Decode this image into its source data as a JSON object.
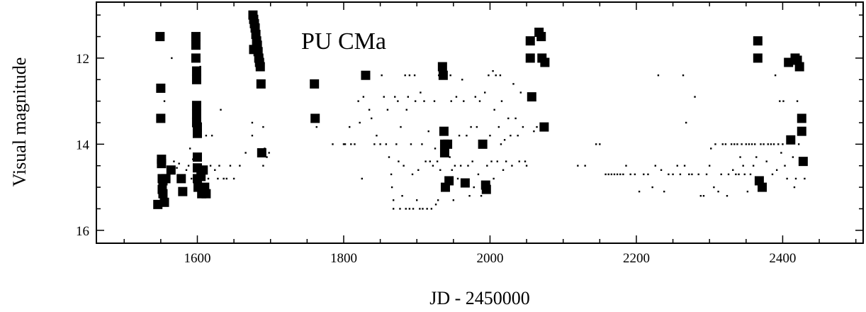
{
  "chart_data": {
    "type": "scatter",
    "title": "PU CMa",
    "xlabel": "JD - 2450000",
    "ylabel": "Visual   magnitude",
    "xlim": [
      1462,
      2510
    ],
    "ylim": [
      16.3,
      10.7
    ],
    "y_inverted": true,
    "x_ticks": [
      1600,
      1800,
      2000,
      2200,
      2400
    ],
    "y_ticks": [
      12,
      14,
      16
    ],
    "grid": false,
    "series": [
      {
        "marker": "large-square",
        "points": [
          [
            1549,
            11.5
          ],
          [
            1550,
            12.7
          ],
          [
            1550,
            13.4
          ],
          [
            1551,
            14.35
          ],
          [
            1551,
            14.45
          ],
          [
            1552,
            14.8
          ],
          [
            1552,
            15.05
          ],
          [
            1553,
            14.85
          ],
          [
            1553,
            15.15
          ],
          [
            1546,
            15.4
          ],
          [
            1555,
            15.35
          ],
          [
            1557,
            14.8
          ],
          [
            1564,
            14.6
          ],
          [
            1578,
            14.8
          ],
          [
            1580,
            15.1
          ],
          [
            1598,
            11.5
          ],
          [
            1598,
            11.7
          ],
          [
            1598,
            12.0
          ],
          [
            1599,
            12.3
          ],
          [
            1599,
            12.5
          ],
          [
            1599,
            13.1
          ],
          [
            1599,
            13.3
          ],
          [
            1599,
            13.5
          ],
          [
            1600,
            13.6
          ],
          [
            1600,
            13.75
          ],
          [
            1600,
            14.3
          ],
          [
            1600,
            14.55
          ],
          [
            1600,
            14.8
          ],
          [
            1601,
            15.0
          ],
          [
            1605,
            14.75
          ],
          [
            1606,
            15.15
          ],
          [
            1608,
            14.6
          ],
          [
            1610,
            15.0
          ],
          [
            1612,
            15.15
          ],
          [
            1676,
            11.0
          ],
          [
            1677,
            11.1
          ],
          [
            1678,
            11.2
          ],
          [
            1679,
            11.3
          ],
          [
            1680,
            11.45
          ],
          [
            1681,
            11.6
          ],
          [
            1682,
            11.7
          ],
          [
            1683,
            11.85
          ],
          [
            1684,
            12.0
          ],
          [
            1685,
            12.1
          ],
          [
            1686,
            12.2
          ],
          [
            1687,
            12.6
          ],
          [
            1677,
            11.8
          ],
          [
            1688,
            14.2
          ],
          [
            1760,
            12.6
          ],
          [
            1761,
            13.4
          ],
          [
            1830,
            12.4
          ],
          [
            1935,
            12.2
          ],
          [
            1936,
            12.4
          ],
          [
            1937,
            13.7
          ],
          [
            1938,
            14.0
          ],
          [
            1938,
            14.2
          ],
          [
            1939,
            15.0
          ],
          [
            1942,
            14.0
          ],
          [
            1944,
            14.85
          ],
          [
            1966,
            14.9
          ],
          [
            1990,
            14.0
          ],
          [
            1994,
            14.95
          ],
          [
            1995,
            15.05
          ],
          [
            2055,
            11.6
          ],
          [
            2055,
            12.0
          ],
          [
            2057,
            12.9
          ],
          [
            2067,
            11.4
          ],
          [
            2070,
            11.5
          ],
          [
            2071,
            12.0
          ],
          [
            2075,
            12.1
          ],
          [
            2074,
            13.6
          ],
          [
            2366,
            11.6
          ],
          [
            2366,
            12.0
          ],
          [
            2368,
            14.85
          ],
          [
            2372,
            15.0
          ],
          [
            2408,
            12.1
          ],
          [
            2411,
            13.9
          ],
          [
            2417,
            12.0
          ],
          [
            2420,
            12.05
          ],
          [
            2423,
            12.2
          ],
          [
            2426,
            13.4
          ],
          [
            2426,
            13.7
          ],
          [
            2428,
            14.4
          ]
        ]
      },
      {
        "marker": "small-dot",
        "points": [
          [
            1555,
            13.0
          ],
          [
            1556,
            14.4
          ],
          [
            1560,
            14.6
          ],
          [
            1565,
            12.0
          ],
          [
            1568,
            14.4
          ],
          [
            1572,
            14.55
          ],
          [
            1575,
            14.45
          ],
          [
            1585,
            14.6
          ],
          [
            1588,
            14.5
          ],
          [
            1590,
            14.1
          ],
          [
            1592,
            14.8
          ],
          [
            1594,
            14.35
          ],
          [
            1596,
            14.6
          ],
          [
            1603,
            15.0
          ],
          [
            1604,
            12.2
          ],
          [
            1612,
            13.8
          ],
          [
            1615,
            14.8
          ],
          [
            1618,
            14.5
          ],
          [
            1620,
            13.8
          ],
          [
            1624,
            14.6
          ],
          [
            1628,
            14.8
          ],
          [
            1630,
            14.5
          ],
          [
            1632,
            13.2
          ],
          [
            1636,
            14.8
          ],
          [
            1640,
            14.8
          ],
          [
            1645,
            14.5
          ],
          [
            1650,
            14.8
          ],
          [
            1658,
            14.5
          ],
          [
            1666,
            14.2
          ],
          [
            1675,
            13.5
          ],
          [
            1675,
            13.8
          ],
          [
            1690,
            13.6
          ],
          [
            1690,
            14.5
          ],
          [
            1692,
            14.1
          ],
          [
            1695,
            14.3
          ],
          [
            1698,
            14.2
          ],
          [
            1763,
            13.6
          ],
          [
            1785,
            14.0
          ],
          [
            1800,
            14.0
          ],
          [
            1802,
            14.0
          ],
          [
            1808,
            13.6
          ],
          [
            1810,
            14.0
          ],
          [
            1815,
            14.0
          ],
          [
            1820,
            13.0
          ],
          [
            1822,
            13.5
          ],
          [
            1825,
            14.8
          ],
          [
            1827,
            12.9
          ],
          [
            1835,
            13.2
          ],
          [
            1838,
            13.4
          ],
          [
            1842,
            14.0
          ],
          [
            1845,
            13.8
          ],
          [
            1850,
            14.0
          ],
          [
            1852,
            12.4
          ],
          [
            1855,
            12.9
          ],
          [
            1858,
            14.0
          ],
          [
            1860,
            13.2
          ],
          [
            1862,
            14.3
          ],
          [
            1865,
            14.7
          ],
          [
            1866,
            15.0
          ],
          [
            1868,
            15.3
          ],
          [
            1868,
            15.5
          ],
          [
            1870,
            12.9
          ],
          [
            1872,
            14.0
          ],
          [
            1874,
            13.0
          ],
          [
            1875,
            14.4
          ],
          [
            1877,
            15.5
          ],
          [
            1878,
            13.6
          ],
          [
            1880,
            15.2
          ],
          [
            1882,
            14.5
          ],
          [
            1884,
            12.4
          ],
          [
            1885,
            15.5
          ],
          [
            1886,
            13.2
          ],
          [
            1888,
            12.9
          ],
          [
            1890,
            12.4
          ],
          [
            1890,
            15.5
          ],
          [
            1892,
            14.0
          ],
          [
            1894,
            14.7
          ],
          [
            1895,
            15.5
          ],
          [
            1897,
            12.4
          ],
          [
            1898,
            13.0
          ],
          [
            1900,
            15.3
          ],
          [
            1902,
            14.6
          ],
          [
            1904,
            15.5
          ],
          [
            1905,
            12.8
          ],
          [
            1907,
            14.0
          ],
          [
            1908,
            15.5
          ],
          [
            1910,
            13.0
          ],
          [
            1912,
            14.4
          ],
          [
            1914,
            15.5
          ],
          [
            1916,
            13.7
          ],
          [
            1918,
            14.4
          ],
          [
            1920,
            15.5
          ],
          [
            1922,
            14.5
          ],
          [
            1924,
            13.0
          ],
          [
            1925,
            14.1
          ],
          [
            1926,
            15.4
          ],
          [
            1928,
            14.4
          ],
          [
            1929,
            15.3
          ],
          [
            1930,
            12.4
          ],
          [
            1932,
            14.6
          ],
          [
            1945,
            14.3
          ],
          [
            1946,
            12.4
          ],
          [
            1947,
            13.0
          ],
          [
            1948,
            14.6
          ],
          [
            1950,
            15.3
          ],
          [
            1952,
            14.5
          ],
          [
            1954,
            12.9
          ],
          [
            1956,
            14.8
          ],
          [
            1958,
            13.8
          ],
          [
            1960,
            14.5
          ],
          [
            1962,
            12.5
          ],
          [
            1964,
            13.0
          ],
          [
            1968,
            13.8
          ],
          [
            1970,
            14.5
          ],
          [
            1972,
            15.2
          ],
          [
            1974,
            13.6
          ],
          [
            1976,
            14.4
          ],
          [
            1978,
            15.0
          ],
          [
            1980,
            12.9
          ],
          [
            1982,
            13.6
          ],
          [
            1984,
            14.7
          ],
          [
            1986,
            13.0
          ],
          [
            1988,
            15.2
          ],
          [
            1993,
            12.8
          ],
          [
            1996,
            14.5
          ],
          [
            1998,
            12.4
          ],
          [
            2000,
            13.8
          ],
          [
            2002,
            14.4
          ],
          [
            2004,
            12.3
          ],
          [
            2005,
            14.8
          ],
          [
            2006,
            13.2
          ],
          [
            2008,
            12.4
          ],
          [
            2010,
            14.4
          ],
          [
            2012,
            13.6
          ],
          [
            2014,
            12.4
          ],
          [
            2015,
            14.0
          ],
          [
            2016,
            13.0
          ],
          [
            2018,
            14.6
          ],
          [
            2020,
            13.9
          ],
          [
            2022,
            14.4
          ],
          [
            2025,
            13.4
          ],
          [
            2028,
            13.8
          ],
          [
            2030,
            14.5
          ],
          [
            2032,
            12.6
          ],
          [
            2035,
            13.4
          ],
          [
            2038,
            13.8
          ],
          [
            2040,
            14.4
          ],
          [
            2042,
            12.8
          ],
          [
            2045,
            13.6
          ],
          [
            2048,
            14.4
          ],
          [
            2050,
            14.5
          ],
          [
            2060,
            13.7
          ],
          [
            2064,
            13.6
          ],
          [
            2120,
            14.5
          ],
          [
            2130,
            14.5
          ],
          [
            2145,
            14.0
          ],
          [
            2150,
            14.0
          ],
          [
            2158,
            14.7
          ],
          [
            2162,
            14.7
          ],
          [
            2166,
            14.7
          ],
          [
            2170,
            14.7
          ],
          [
            2174,
            14.7
          ],
          [
            2178,
            14.7
          ],
          [
            2182,
            14.7
          ],
          [
            2186,
            14.5
          ],
          [
            2192,
            14.7
          ],
          [
            2198,
            14.7
          ],
          [
            2204,
            15.1
          ],
          [
            2210,
            14.7
          ],
          [
            2216,
            14.7
          ],
          [
            2222,
            15.0
          ],
          [
            2226,
            14.5
          ],
          [
            2230,
            12.4
          ],
          [
            2234,
            14.6
          ],
          [
            2238,
            15.1
          ],
          [
            2244,
            14.7
          ],
          [
            2250,
            14.7
          ],
          [
            2256,
            14.5
          ],
          [
            2260,
            14.7
          ],
          [
            2264,
            12.4
          ],
          [
            2266,
            14.5
          ],
          [
            2268,
            13.5
          ],
          [
            2272,
            14.7
          ],
          [
            2276,
            14.7
          ],
          [
            2280,
            12.9
          ],
          [
            2285,
            14.7
          ],
          [
            2288,
            15.2
          ],
          [
            2292,
            15.2
          ],
          [
            2296,
            14.7
          ],
          [
            2300,
            14.5
          ],
          [
            2302,
            14.1
          ],
          [
            2306,
            15.0
          ],
          [
            2308,
            14.0
          ],
          [
            2312,
            15.1
          ],
          [
            2316,
            14.7
          ],
          [
            2318,
            14.0
          ],
          [
            2322,
            14.0
          ],
          [
            2324,
            15.2
          ],
          [
            2326,
            14.7
          ],
          [
            2330,
            14.0
          ],
          [
            2332,
            14.6
          ],
          [
            2334,
            14.0
          ],
          [
            2336,
            14.7
          ],
          [
            2338,
            14.0
          ],
          [
            2340,
            14.7
          ],
          [
            2342,
            14.3
          ],
          [
            2344,
            14.0
          ],
          [
            2346,
            14.5
          ],
          [
            2348,
            14.7
          ],
          [
            2350,
            14.0
          ],
          [
            2352,
            15.1
          ],
          [
            2354,
            14.0
          ],
          [
            2356,
            14.7
          ],
          [
            2358,
            14.0
          ],
          [
            2360,
            14.5
          ],
          [
            2362,
            14.0
          ],
          [
            2364,
            14.3
          ],
          [
            2370,
            14.0
          ],
          [
            2374,
            14.0
          ],
          [
            2378,
            14.4
          ],
          [
            2380,
            14.0
          ],
          [
            2384,
            14.0
          ],
          [
            2386,
            14.7
          ],
          [
            2388,
            14.0
          ],
          [
            2390,
            12.4
          ],
          [
            2392,
            14.6
          ],
          [
            2394,
            14.0
          ],
          [
            2396,
            13.0
          ],
          [
            2398,
            14.2
          ],
          [
            2400,
            14.0
          ],
          [
            2401,
            13.0
          ],
          [
            2403,
            14.5
          ],
          [
            2406,
            14.8
          ],
          [
            2414,
            14.3
          ],
          [
            2416,
            15.0
          ],
          [
            2418,
            14.8
          ],
          [
            2420,
            13.0
          ],
          [
            2422,
            14.0
          ],
          [
            2430,
            14.8
          ]
        ]
      }
    ]
  }
}
